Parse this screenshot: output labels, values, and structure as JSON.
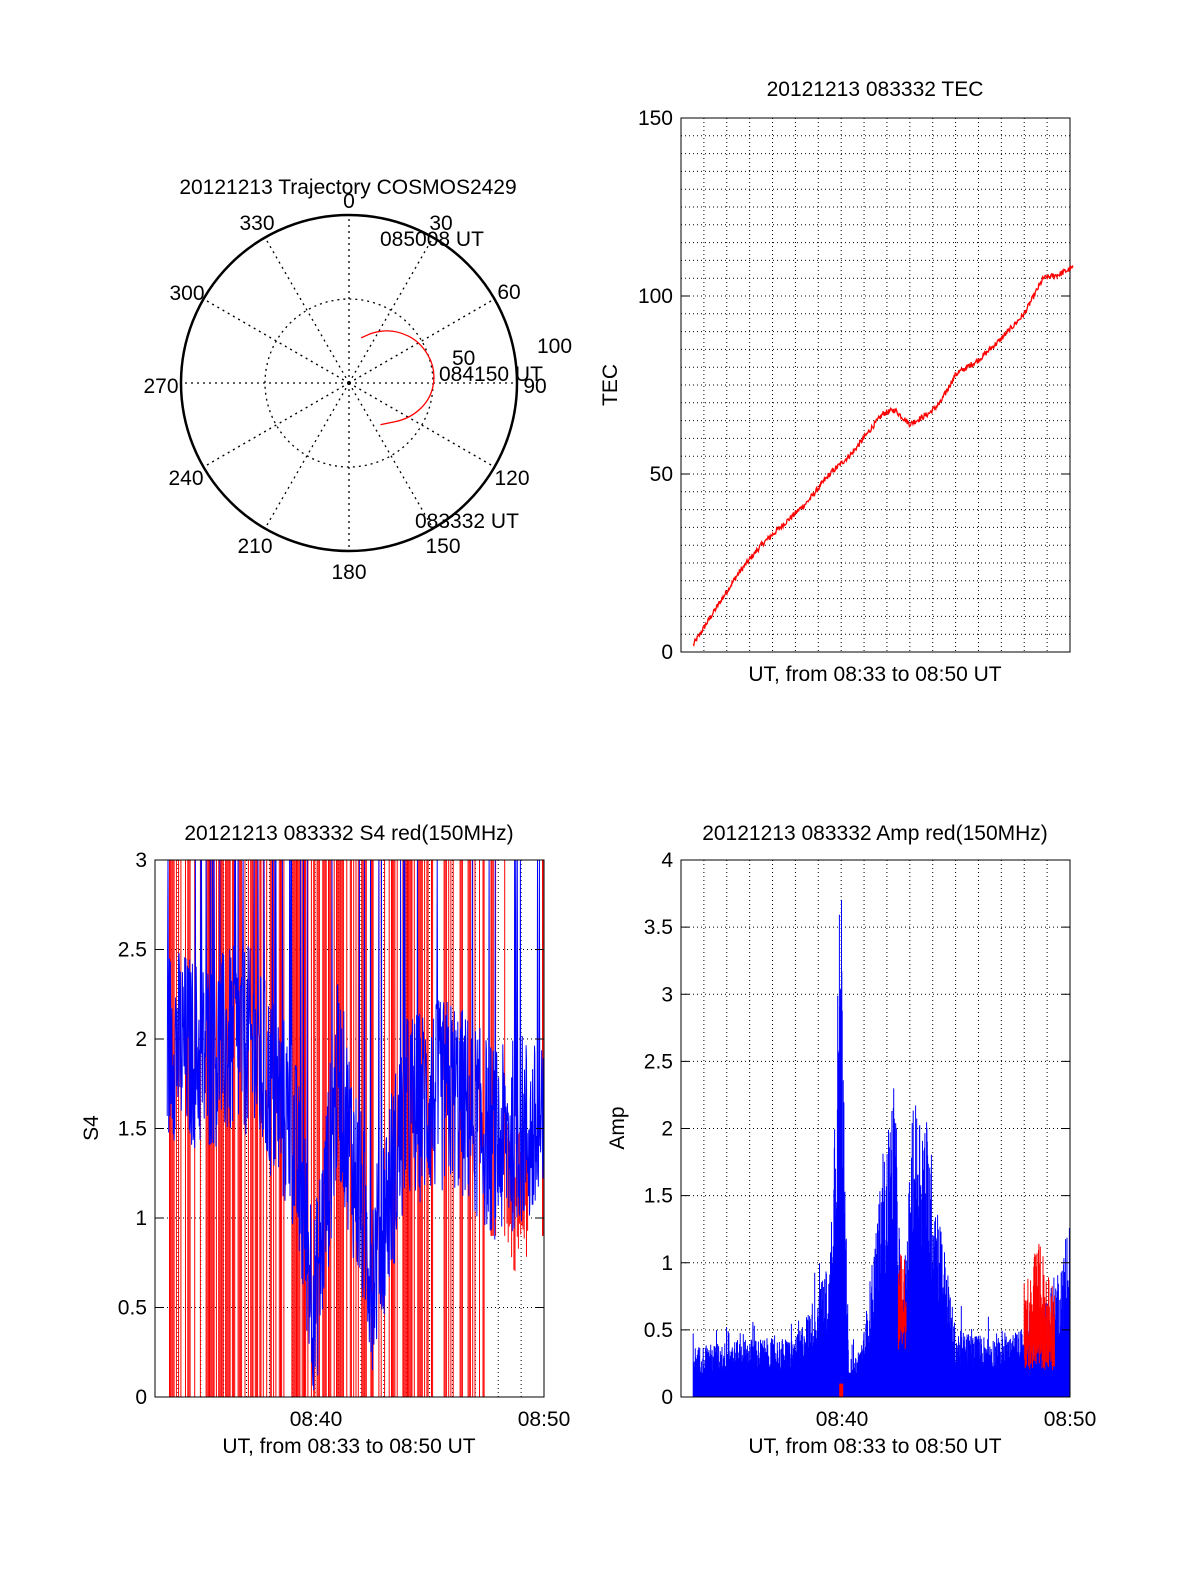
{
  "colors": {
    "red": "#ff0000",
    "blue": "#0000ff",
    "axis": "#000000",
    "grid": "#000000",
    "background": "#ffffff"
  },
  "chart_data": [
    {
      "id": "trajectory",
      "type": "polar",
      "title": "20121213 Trajectory COSMOS2429",
      "azimuth_labels": [
        "0",
        "30",
        "60",
        "90",
        "120",
        "150",
        "180",
        "210",
        "240",
        "270",
        "300",
        "330"
      ],
      "radial_ticks": [
        "50",
        "100"
      ],
      "grid": true,
      "series": [
        {
          "color": "#ff0000",
          "points": [
            {
              "az": 15,
              "el": 25
            },
            {
              "az": 27,
              "el": 31
            },
            {
              "az": 42,
              "el": 38
            },
            {
              "az": 60,
              "el": 44
            },
            {
              "az": 80,
              "el": 47
            },
            {
              "az": 100,
              "el": 45
            },
            {
              "az": 120,
              "el": 38
            },
            {
              "az": 143,
              "el": 28
            }
          ]
        }
      ],
      "annotations": [
        {
          "text": "085008 UT",
          "az": 15,
          "el": 25
        },
        {
          "text": "084150 UT",
          "az": 84,
          "el": 47
        },
        {
          "text": "083332 UT",
          "az": 143,
          "el": 28
        }
      ]
    },
    {
      "id": "tec",
      "type": "line",
      "title": "20121213 083332 TEC",
      "xlabel": "UT, from 08:33 to 08:50 UT",
      "ylabel": "TEC",
      "xlim": [
        "08:33",
        "08:50"
      ],
      "ylim": [
        0,
        150
      ],
      "yticks": [
        "0",
        "50",
        "100",
        "150"
      ],
      "grid": true,
      "series": [
        {
          "color": "#ff0000",
          "x": [
            "08:33:32",
            "08:34:30",
            "08:35:30",
            "08:36:30",
            "08:37:30",
            "08:38:30",
            "08:39:30",
            "08:40:30",
            "08:41:20",
            "08:41:50",
            "08:42:20",
            "08:43:00",
            "08:43:50",
            "08:44:20",
            "08:45:00",
            "08:46:00",
            "08:47:00",
            "08:48:00",
            "08:48:50",
            "08:49:30",
            "08:50:08"
          ],
          "values": [
            2,
            12,
            22,
            30,
            36,
            42,
            50,
            56,
            63,
            67,
            68,
            64,
            67,
            70,
            78,
            82,
            88,
            95,
            105,
            106,
            108
          ]
        }
      ]
    },
    {
      "id": "s4",
      "type": "line",
      "title": "20121213 083332 S4 red(150MHz)",
      "xlabel": "UT, from 08:33 to 08:50 UT",
      "ylabel": "S4",
      "xlim": [
        "08:33",
        "08:50"
      ],
      "ylim": [
        0,
        3
      ],
      "xticks": [
        "08:40",
        "08:50"
      ],
      "yticks": [
        "0",
        "0.5",
        "1",
        "1.5",
        "2",
        "2.5",
        "3"
      ],
      "grid": true,
      "series": [
        {
          "color": "#ff0000",
          "note_range": [
            0,
            3
          ],
          "x": [
            "08:33:32",
            "08:36:00",
            "08:38:00",
            "08:40:00",
            "08:42:00",
            "08:44:00",
            "08:46:00",
            "08:48:00",
            "08:49:00",
            "08:50:00"
          ],
          "values": [
            2.2,
            0,
            3,
            0.3,
            3,
            0.5,
            3,
            1.5,
            0.8,
            3
          ]
        },
        {
          "color": "#0000ff",
          "x": [
            "08:33:32",
            "08:35:00",
            "08:37:00",
            "08:39:00",
            "08:40:00",
            "08:41:00",
            "08:42:30",
            "08:44:00",
            "08:46:00",
            "08:48:00",
            "08:49:00",
            "08:50:00"
          ],
          "values": [
            2.0,
            1.9,
            2.0,
            1.5,
            0.5,
            1.8,
            0.7,
            1.6,
            1.7,
            1.4,
            1.5,
            1.4
          ]
        }
      ]
    },
    {
      "id": "amp",
      "type": "line",
      "title": "20121213 083332 Amp red(150MHz)",
      "xlabel": "UT, from 08:33 to 08:50 UT",
      "ylabel": "Amp",
      "xlim": [
        "08:33",
        "08:50"
      ],
      "ylim": [
        0,
        4
      ],
      "xticks": [
        "08:40",
        "08:50"
      ],
      "yticks": [
        "0",
        "0.5",
        "1",
        "1.5",
        "2",
        "2.5",
        "3",
        "3.5",
        "4"
      ],
      "grid": true,
      "series": [
        {
          "color": "#0000ff",
          "x": [
            "08:33:32",
            "08:36:00",
            "08:38:00",
            "08:39:30",
            "08:40:00",
            "08:40:20",
            "08:41:00",
            "08:42:20",
            "08:42:40",
            "08:43:10",
            "08:43:40",
            "08:45:00",
            "08:47:00",
            "08:48:30",
            "08:50:00"
          ],
          "values": [
            0.3,
            0.35,
            0.35,
            0.8,
            3.3,
            0.1,
            0.4,
            1.95,
            0.5,
            1.8,
            1.75,
            0.4,
            0.35,
            0.45,
            0.95
          ]
        },
        {
          "color": "#ff0000",
          "x": [
            "08:40:00",
            "08:42:40",
            "08:48:10",
            "08:48:40",
            "08:49:10"
          ],
          "values": [
            0.1,
            1.1,
            0.7,
            1.1,
            0.6
          ]
        }
      ]
    }
  ]
}
